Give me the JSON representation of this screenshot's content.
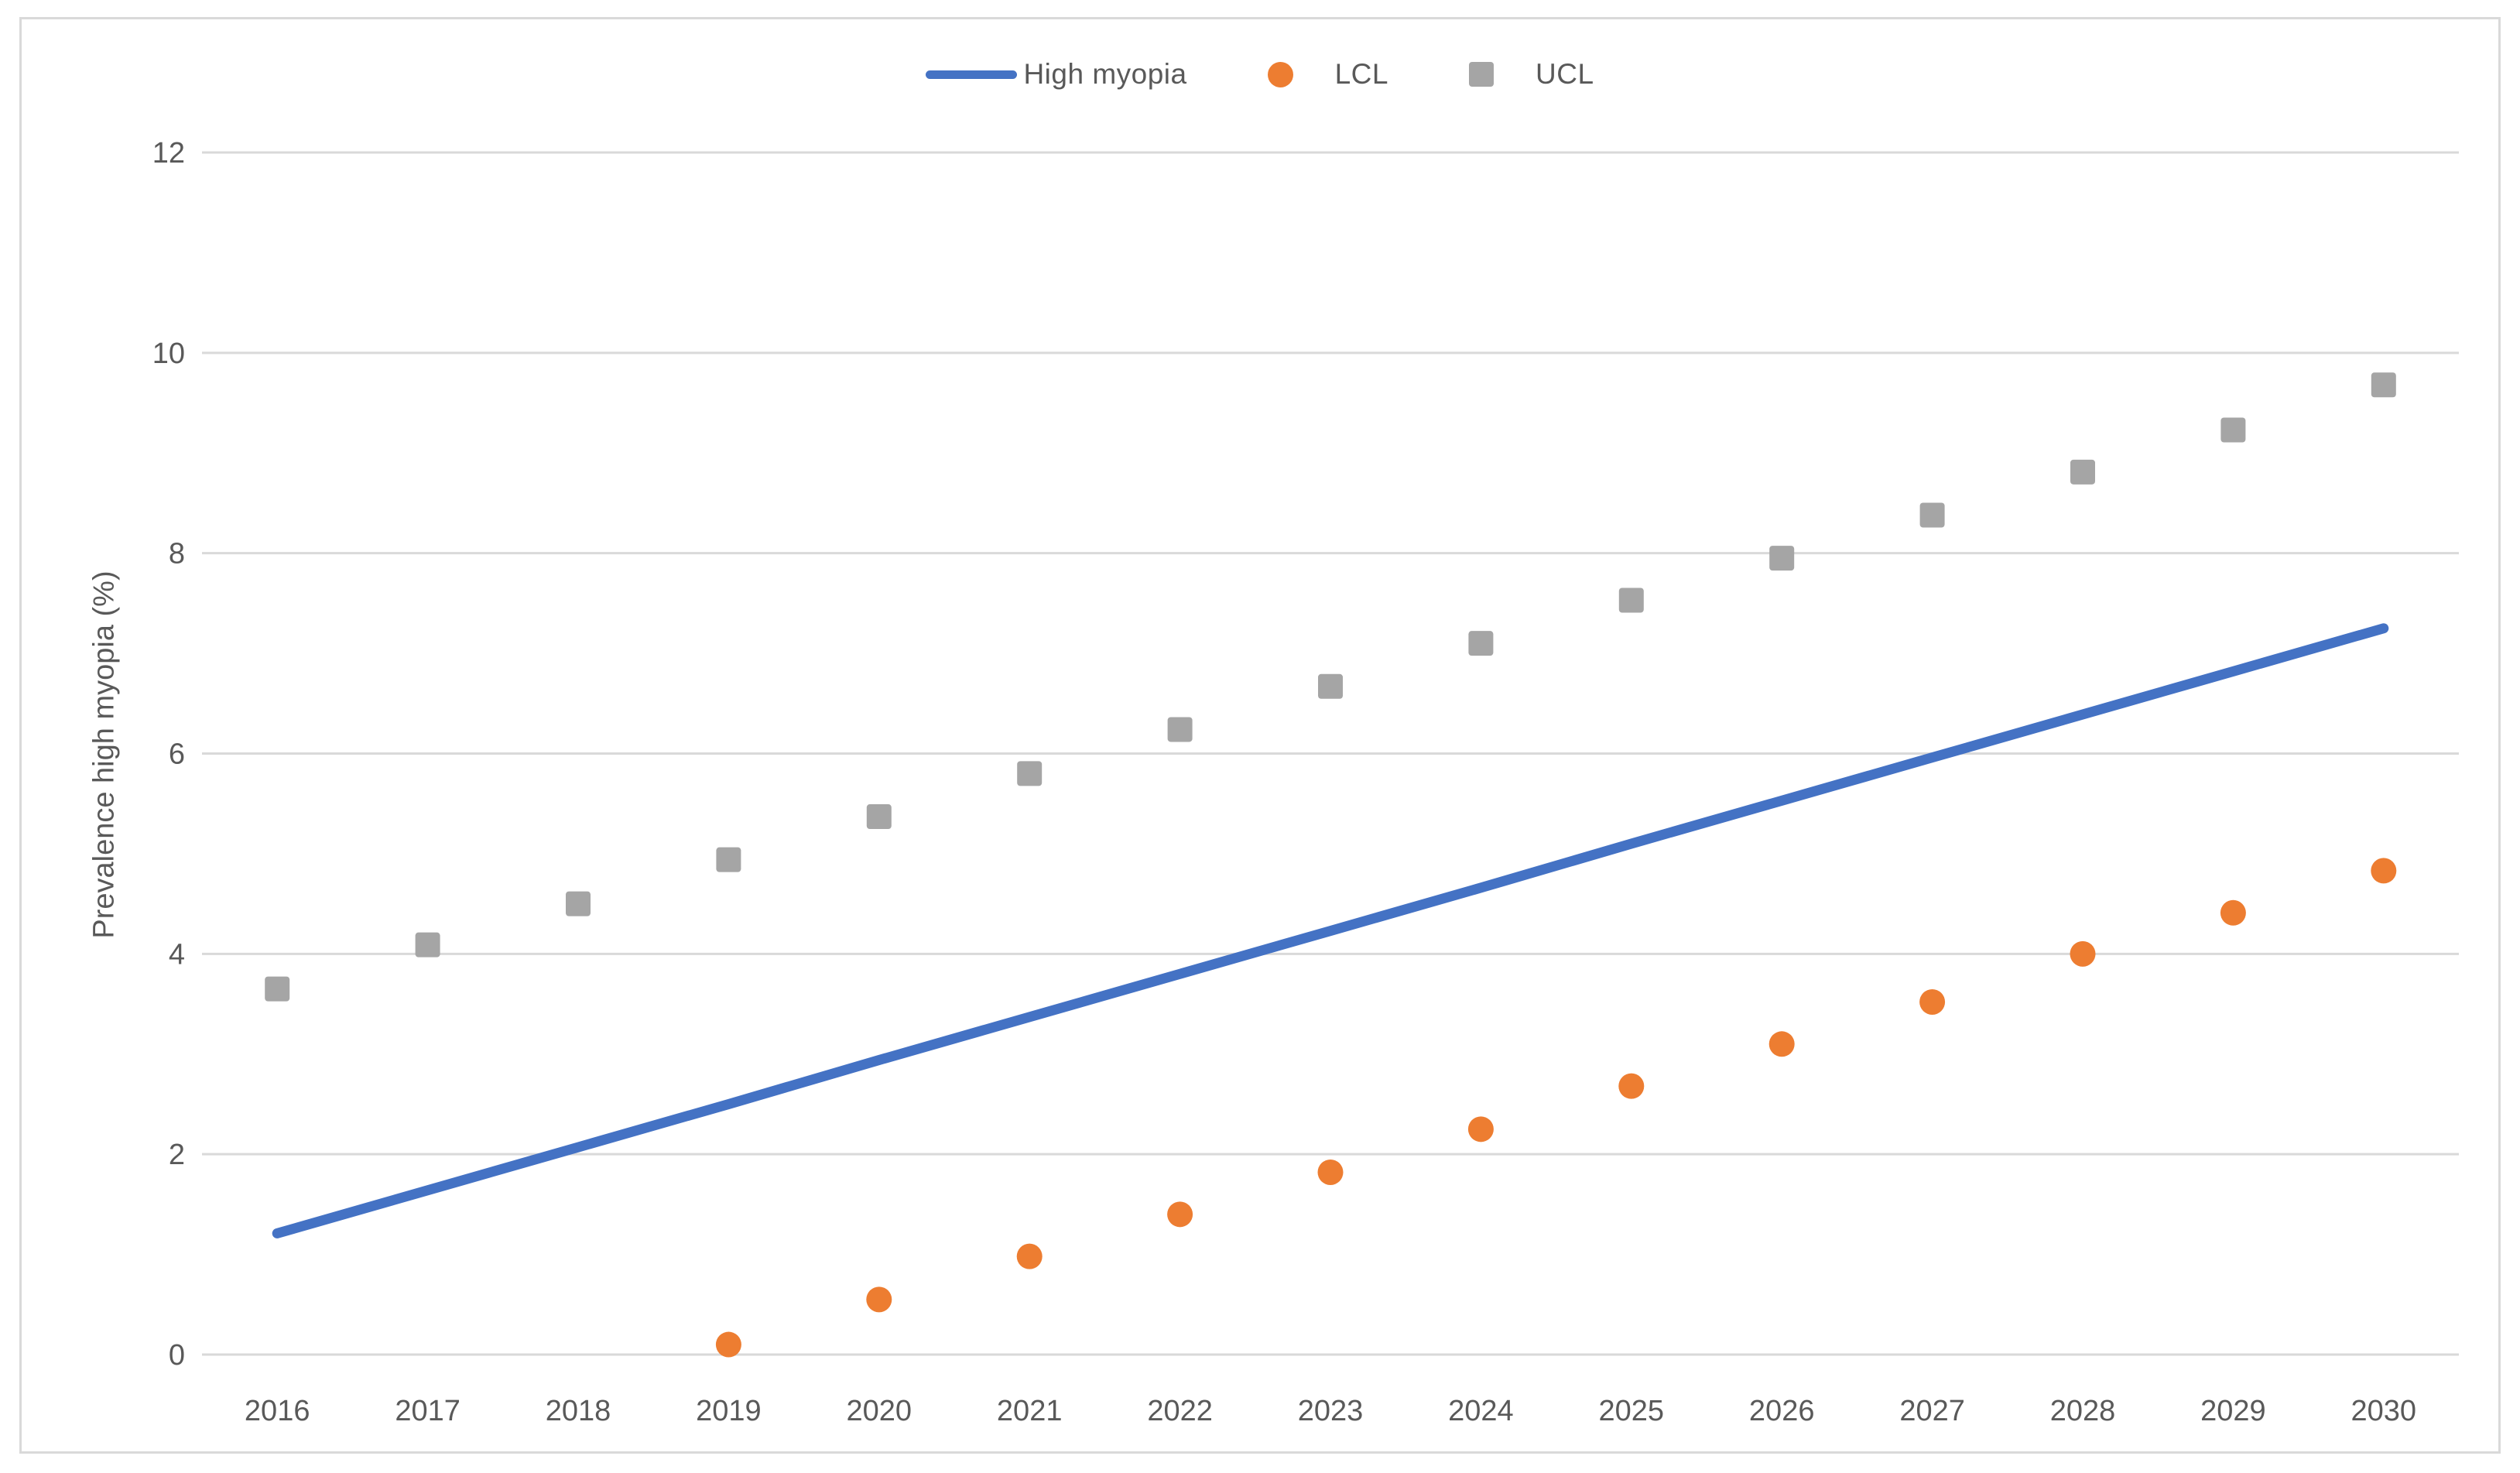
{
  "figure": {
    "y_axis_title": "Prevalence high myopia (%)",
    "legend": [
      {
        "label": "High myopia",
        "marker": "line",
        "color": "#4472c4"
      },
      {
        "label": "LCL",
        "marker": "circle",
        "color": "#ed7d31"
      },
      {
        "label": "UCL",
        "marker": "square",
        "color": "#a5a5a5"
      }
    ],
    "colors": {
      "gridline": "#d9d9d9",
      "axis_text": "#595959",
      "border": "#d9d9d9",
      "high_myopia": "#4472c4",
      "lcl": "#ed7d31",
      "ucl": "#a5a5a5"
    }
  },
  "chart_data": {
    "type": "line",
    "title": "",
    "xlabel": "",
    "ylabel": "Prevalence high myopia (%)",
    "categories": [
      "2016",
      "2017",
      "2018",
      "2019",
      "2020",
      "2021",
      "2022",
      "2023",
      "2024",
      "2025",
      "2026",
      "2027",
      "2028",
      "2029",
      "2030"
    ],
    "series": [
      {
        "name": "High myopia",
        "type": "line",
        "marker": "none",
        "color": "#4472c4",
        "values": [
          1.21,
          1.64,
          2.07,
          2.5,
          2.94,
          3.37,
          3.8,
          4.23,
          4.66,
          5.1,
          5.53,
          5.96,
          6.39,
          6.82,
          7.25
        ]
      },
      {
        "name": "LCL",
        "type": "scatter",
        "marker": "circle",
        "color": "#ed7d31",
        "values": [
          null,
          null,
          null,
          0.1,
          0.55,
          0.98,
          1.4,
          1.82,
          2.25,
          2.68,
          3.1,
          3.52,
          4.0,
          4.41,
          4.83
        ]
      },
      {
        "name": "UCL",
        "type": "scatter",
        "marker": "square",
        "color": "#a5a5a5",
        "values": [
          3.65,
          4.09,
          4.5,
          4.94,
          5.37,
          5.8,
          6.24,
          6.67,
          7.1,
          7.53,
          7.95,
          8.38,
          8.81,
          9.23,
          9.68
        ]
      }
    ],
    "ylim": [
      0,
      12
    ],
    "ytick_step": 2,
    "yticks": [
      0,
      2,
      4,
      6,
      8,
      10,
      12
    ],
    "grid": true,
    "legend_position": "top-center"
  }
}
